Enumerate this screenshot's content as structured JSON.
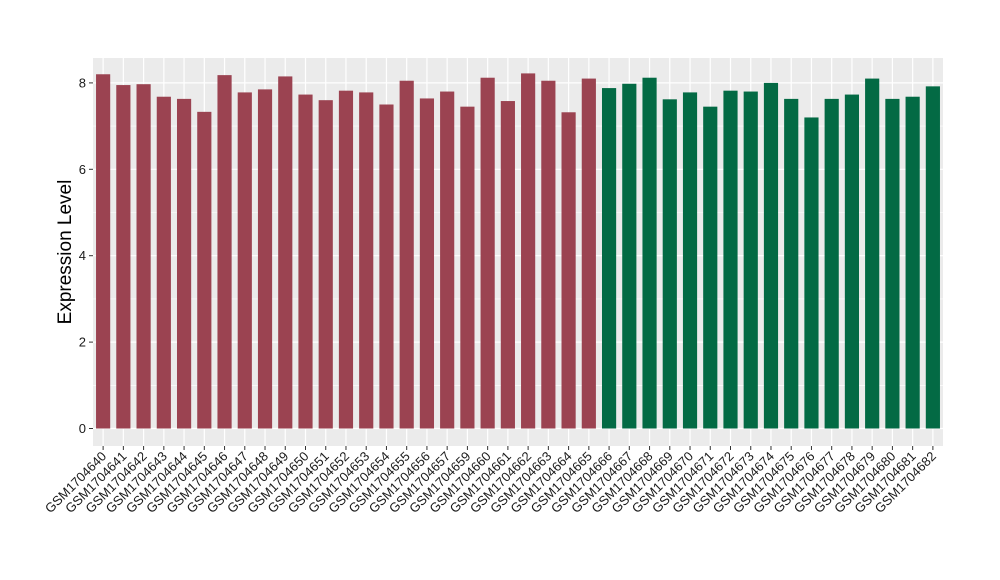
{
  "chart_data": {
    "type": "bar",
    "title": "",
    "xlabel": "",
    "ylabel": "Expression Level",
    "ylim": [
      0,
      8.7
    ],
    "yticks": [
      0,
      2,
      4,
      6,
      8
    ],
    "grid": true,
    "legend": "none",
    "colors": {
      "group1": "#9b4351",
      "group2": "#036a44",
      "panel": "#ebebeb",
      "gridline": "#ffffff"
    },
    "categories": [
      "GSM1704640",
      "GSM1704641",
      "GSM1704642",
      "GSM1704643",
      "GSM1704644",
      "GSM1704645",
      "GSM1704646",
      "GSM1704647",
      "GSM1704648",
      "GSM1704649",
      "GSM1704650",
      "GSM1704651",
      "GSM1704652",
      "GSM1704653",
      "GSM1704654",
      "GSM1704655",
      "GSM1704656",
      "GSM1704657",
      "GSM1704659",
      "GSM1704660",
      "GSM1704661",
      "GSM1704662",
      "GSM1704663",
      "GSM1704664",
      "GSM1704665",
      "GSM1704666",
      "GSM1704667",
      "GSM1704668",
      "GSM1704669",
      "GSM1704670",
      "GSM1704671",
      "GSM1704672",
      "GSM1704673",
      "GSM1704674",
      "GSM1704675",
      "GSM1704676",
      "GSM1704677",
      "GSM1704678",
      "GSM1704679",
      "GSM1704680",
      "GSM1704681",
      "GSM1704682"
    ],
    "values": [
      8.2,
      7.95,
      7.97,
      7.68,
      7.63,
      7.33,
      8.18,
      7.78,
      7.85,
      8.15,
      7.73,
      7.6,
      7.82,
      7.78,
      7.5,
      8.05,
      7.64,
      7.8,
      7.45,
      8.12,
      7.58,
      8.22,
      8.05,
      7.32,
      8.1,
      7.88,
      7.98,
      8.12,
      7.62,
      7.78,
      7.45,
      7.82,
      7.8,
      8.0,
      7.63,
      7.2,
      7.63,
      7.73,
      8.1,
      7.63,
      7.68,
      7.92
    ],
    "group": [
      1,
      1,
      1,
      1,
      1,
      1,
      1,
      1,
      1,
      1,
      1,
      1,
      1,
      1,
      1,
      1,
      1,
      1,
      1,
      1,
      1,
      1,
      1,
      1,
      1,
      2,
      2,
      2,
      2,
      2,
      2,
      2,
      2,
      2,
      2,
      2,
      2,
      2,
      2,
      2,
      2,
      2
    ]
  }
}
